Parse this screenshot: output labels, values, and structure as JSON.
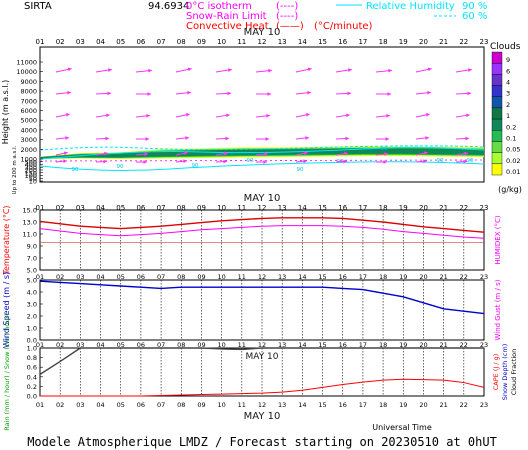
{
  "header": {
    "station": "SIRTA",
    "coords": "94.6934",
    "legend_isotherm": "0°C isotherm",
    "legend_isotherm_sym": "(----)",
    "legend_snow_rain": "Snow-Rain Limit",
    "legend_snow_rain_sym": "(----)",
    "legend_convective": "Convective Heat",
    "legend_convective_sym": "(——)",
    "legend_convective_unit": "(°C/minute)",
    "rh_label": "Relative Humidity",
    "rh_90": "90 %",
    "rh_60": "60 %",
    "clouds_label": "Clouds",
    "clouds_unit": "(g/kg)"
  },
  "footer": {
    "xlabel": "Universal Time",
    "title": "Modele Atmospherique LMDZ / Forecast starting on 20230510 at 0hUT"
  },
  "colors": {
    "date": "#1a1a1a",
    "magenta": "#ff00ff",
    "red": "#ff0000",
    "cyan": "#00e5ff",
    "blue": "#0000cc",
    "green": "#00a000"
  },
  "chart_data": [
    {
      "type": "heatmap",
      "name_panel": "cloud-height",
      "date_label": "MAY 10",
      "ylabel": "Height (m a.s.l.)",
      "ylabel2": "Up to 200 m a.s.l.",
      "x_ticks": [
        "01",
        "02",
        "03",
        "04",
        "05",
        "06",
        "07",
        "08",
        "09",
        "10",
        "11",
        "12",
        "13",
        "14",
        "15",
        "16",
        "17",
        "18",
        "19",
        "20",
        "21",
        "22",
        "23"
      ],
      "y_ticks": [
        "11000",
        "10000",
        "9000",
        "8000",
        "7000",
        "6000",
        "5000",
        "4000",
        "3000",
        "2000",
        "1000",
        "500",
        "400",
        "300",
        "200",
        "150",
        "100",
        "50",
        "10"
      ],
      "colorbar_ticks": [
        "9",
        "6",
        "4",
        "3",
        "2",
        "1",
        "0.2",
        "0.1",
        "0.05",
        "0.02",
        "0.01"
      ],
      "cloud_layer_levels": [
        {
          "x": [
            1,
            3,
            5,
            7,
            9,
            11,
            13,
            15,
            17,
            19,
            21,
            23
          ],
          "bottom_m": [
            1000,
            1050,
            1000,
            1050,
            1100,
            1150,
            1200,
            1250,
            1300,
            1300,
            1250,
            1200
          ],
          "top_m": [
            1250,
            1600,
            1700,
            2000,
            2100,
            2200,
            2200,
            2250,
            2300,
            2300,
            2250,
            2200
          ]
        }
      ],
      "rh_contour_labels": [
        "90",
        "90",
        "90",
        "90",
        "90",
        "90",
        "90",
        "90",
        "90"
      ]
    },
    {
      "type": "line",
      "name_panel": "temperature-humidex",
      "date_label": "MAY 10",
      "ylabel_left": "Temperature (°C)",
      "ylabel_right": "HUMIDEX (°C)",
      "y_ticks": [
        "15.0",
        "13.0",
        "11.0",
        "9.0",
        "7.0",
        "5.0"
      ],
      "ylim": [
        5,
        15
      ],
      "x": [
        1,
        2,
        3,
        4,
        5,
        6,
        7,
        8,
        9,
        10,
        11,
        12,
        13,
        14,
        15,
        16,
        17,
        18,
        19,
        20,
        21,
        22,
        23
      ],
      "series": [
        {
          "name": "Temperature",
          "values": [
            13.1,
            12.7,
            12.3,
            12.1,
            11.9,
            12.1,
            12.3,
            12.6,
            12.9,
            13.2,
            13.4,
            13.6,
            13.7,
            13.7,
            13.7,
            13.6,
            13.3,
            13.0,
            12.6,
            12.2,
            11.9,
            11.6,
            11.3
          ]
        },
        {
          "name": "Humidex",
          "values": [
            11.9,
            11.5,
            11.1,
            10.9,
            10.7,
            10.9,
            11.1,
            11.4,
            11.7,
            11.9,
            12.1,
            12.3,
            12.4,
            12.4,
            12.4,
            12.3,
            12.1,
            11.8,
            11.4,
            11.1,
            10.8,
            10.5,
            10.3
          ]
        }
      ],
      "ref_line": 9.6
    },
    {
      "type": "line",
      "name_panel": "wind",
      "ylabel_left": "Wind Speed (m / s)",
      "ylabel_right": "Wind Gust (m / s)",
      "y_ticks": [
        "5.0",
        "4.0",
        "3.0",
        "2.0",
        "1.0",
        "0.0"
      ],
      "ylim": [
        0,
        5
      ],
      "x": [
        1,
        2,
        3,
        4,
        5,
        6,
        7,
        8,
        9,
        10,
        11,
        12,
        13,
        14,
        15,
        16,
        17,
        18,
        19,
        20,
        21,
        22,
        23
      ],
      "series": [
        {
          "name": "Wind Speed",
          "values": [
            4.9,
            4.8,
            4.7,
            4.6,
            4.5,
            4.4,
            4.3,
            4.4,
            4.4,
            4.4,
            4.4,
            4.4,
            4.4,
            4.4,
            4.4,
            4.3,
            4.2,
            3.9,
            3.6,
            3.1,
            2.6,
            2.4,
            2.2
          ]
        }
      ]
    },
    {
      "type": "line",
      "name_panel": "precip-cape",
      "date_label": "MAY 10",
      "ylabel_left": "Rain (mm / hour) / Snow (cm / hour)",
      "ylabel_right": "CAPE (J / g)",
      "ylabel_right2": "Snow Depth (cm)",
      "ylabel_right3": "Cloud Fraction",
      "y_ticks": [
        "1.0",
        "0.8",
        "0.6",
        "0.4",
        "0.2",
        "0.0"
      ],
      "ylim": [
        0,
        1
      ],
      "x": [
        1,
        2,
        3,
        4,
        5,
        6,
        7,
        8,
        9,
        10,
        11,
        12,
        13,
        14,
        15,
        16,
        17,
        18,
        19,
        20,
        21,
        22,
        23
      ],
      "series": [
        {
          "name": "Cloud Fraction",
          "values": [
            0.45,
            0.72,
            1.0,
            1.0,
            1.0,
            1.0,
            1.0,
            1.0,
            1.0,
            0.98,
            0.97,
            1.0,
            1.0,
            1.0,
            1.0,
            1.0,
            1.0,
            1.0,
            1.0,
            1.0,
            1.0,
            1.0,
            1.0
          ]
        },
        {
          "name": "CAPE",
          "values": [
            0.0,
            0.0,
            0.0,
            0.0,
            0.0,
            0.0,
            0.01,
            0.02,
            0.03,
            0.04,
            0.05,
            0.06,
            0.08,
            0.12,
            0.18,
            0.24,
            0.29,
            0.33,
            0.35,
            0.34,
            0.33,
            0.28,
            0.18
          ]
        }
      ]
    }
  ]
}
